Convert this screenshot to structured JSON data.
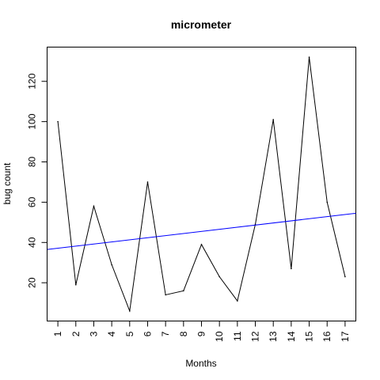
{
  "chart_data": {
    "type": "line",
    "title": "micrometer",
    "xlabel": "Months",
    "ylabel": "bug count",
    "x": [
      1,
      2,
      3,
      4,
      5,
      6,
      7,
      8,
      9,
      10,
      11,
      12,
      13,
      14,
      15,
      16,
      17
    ],
    "series": [
      {
        "values": [
          100,
          19,
          58,
          29,
          6,
          70,
          14,
          16,
          39,
          23,
          11,
          49,
          101,
          27,
          132,
          60,
          23
        ],
        "color": "#000000"
      }
    ],
    "trendline": {
      "x": [
        0.4,
        17.6
      ],
      "values": [
        36.5,
        54.5
      ],
      "color": "#0000ff"
    },
    "xlim": [
      0.4,
      17.6
    ],
    "ylim": [
      1,
      137
    ],
    "x_ticks": [
      1,
      2,
      3,
      4,
      5,
      6,
      7,
      8,
      9,
      10,
      11,
      12,
      13,
      14,
      15,
      16,
      17
    ],
    "x_tick_labels": [
      "1",
      "2",
      "3",
      "4",
      "5",
      "6",
      "7",
      "8",
      "9",
      "10",
      "11",
      "12",
      "13",
      "14",
      "15",
      "16",
      "17"
    ],
    "y_ticks": [
      20,
      40,
      60,
      80,
      100,
      120
    ],
    "y_tick_labels": [
      "20",
      "40",
      "60",
      "80",
      "100",
      "120"
    ],
    "grid": false,
    "legend": "none"
  }
}
